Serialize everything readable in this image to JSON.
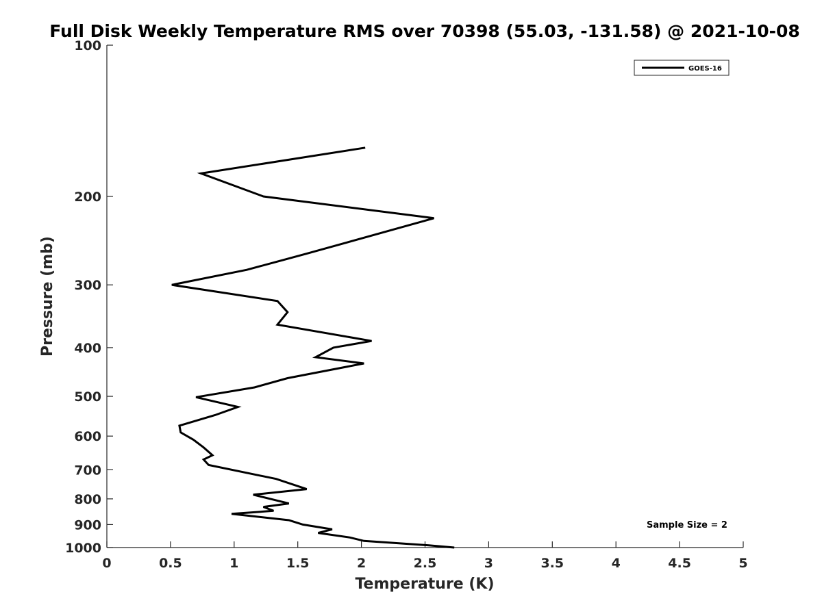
{
  "chart_data": {
    "type": "line",
    "title": "Full Disk Weekly Temperature RMS over 70398 (55.03, -131.58) @ 2021-10-08",
    "xlabel": "Temperature (K)",
    "ylabel": "Pressure (mb)",
    "xlim": [
      0,
      5
    ],
    "ylim": [
      100,
      1000
    ],
    "y_scale": "log",
    "y_reversed": true,
    "xticks": [
      0,
      0.5,
      1,
      1.5,
      2,
      2.5,
      3,
      3.5,
      4,
      4.5,
      5
    ],
    "xtick_labels": [
      "0",
      "0.5",
      "1",
      "1.5",
      "2",
      "2.5",
      "3",
      "3.5",
      "4",
      "4.5",
      "5"
    ],
    "yticks": [
      100,
      200,
      300,
      400,
      500,
      600,
      700,
      800,
      900,
      1000
    ],
    "ytick_labels": [
      "100",
      "200",
      "300",
      "400",
      "500",
      "600",
      "700",
      "800",
      "900",
      "1000"
    ],
    "grid": false,
    "legend_position": "top-right",
    "series": [
      {
        "name": "GOES-16",
        "color": "#000000",
        "x": [
          2.03,
          0.74,
          1.23,
          2.57,
          1.57,
          1.1,
          0.51,
          1.34,
          1.42,
          1.34,
          2.08,
          1.78,
          1.64,
          2.02,
          1.42,
          1.16,
          0.7,
          1.03,
          0.85,
          0.57,
          0.58,
          0.68,
          0.76,
          0.83,
          0.76,
          0.8,
          1.33,
          1.57,
          1.15,
          1.43,
          1.23,
          1.31,
          0.98,
          1.43,
          1.54,
          1.77,
          1.66,
          1.91,
          2.02,
          2.53,
          2.73
        ],
        "y": [
          160,
          180,
          200,
          221,
          260,
          280,
          300,
          323,
          340,
          360,
          388,
          400,
          418,
          430,
          460,
          480,
          502,
          525,
          545,
          572,
          590,
          610,
          632,
          655,
          668,
          685,
          730,
          765,
          785,
          817,
          830,
          845,
          857,
          882,
          900,
          920,
          935,
          955,
          970,
          990,
          1000
        ]
      }
    ],
    "annotation": "Sample Size = 2"
  }
}
